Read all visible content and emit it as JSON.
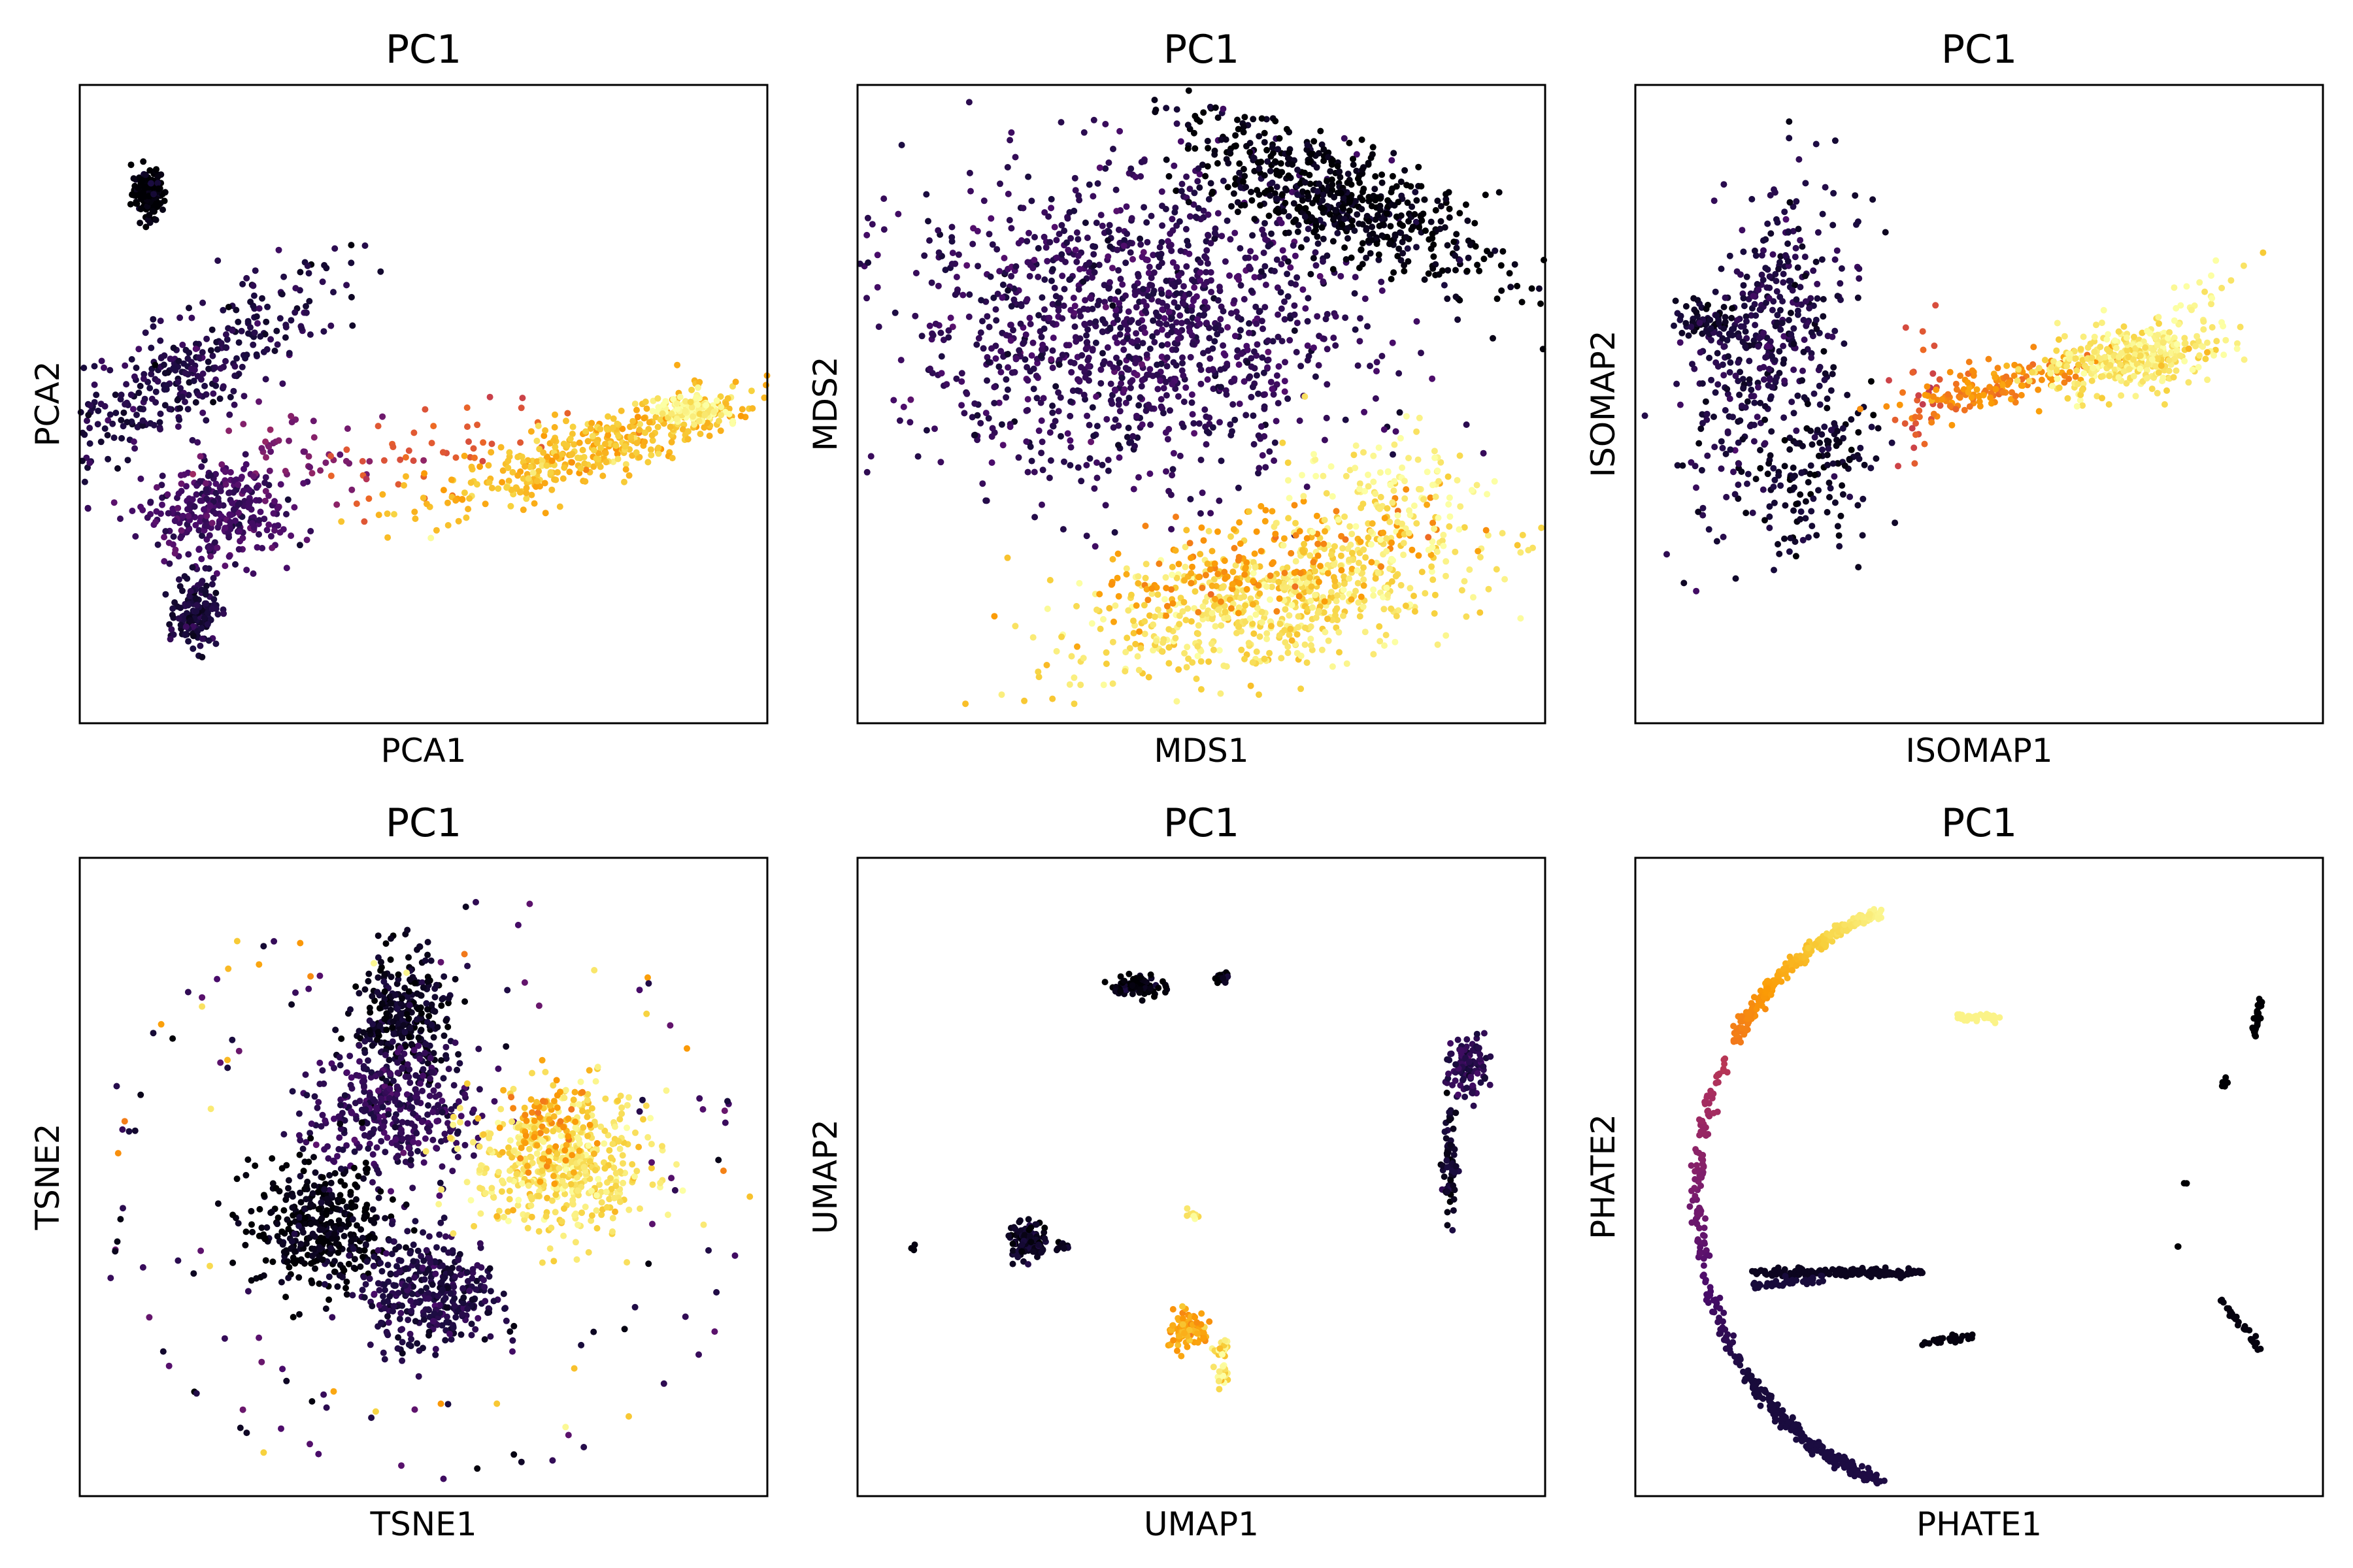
{
  "colormap": [
    "#000004",
    "#1b0c41",
    "#4a0c6b",
    "#781c6d",
    "#a52c60",
    "#cf4446",
    "#ed6925",
    "#fb9b06",
    "#f7d13d",
    "#fcffa4"
  ],
  "chart_data": [
    {
      "type": "scatter",
      "title": "PC1",
      "xlabel": "PCA1",
      "ylabel": "PCA2",
      "xlim": [
        0,
        100
      ],
      "ylim": [
        0,
        100
      ],
      "xticks": false,
      "yticks": false,
      "clusters": [
        {
          "x": 10,
          "y": 83,
          "sx": 1.2,
          "sy": 2.0,
          "n": 140,
          "c": 0.0
        },
        {
          "x": 15,
          "y": 55,
          "sx": 4.0,
          "sy": 14.0,
          "n": 380,
          "c": 0.12,
          "rot": -55
        },
        {
          "x": 20,
          "y": 33,
          "sx": 5.0,
          "sy": 4.0,
          "n": 320,
          "c": 0.2
        },
        {
          "x": 17,
          "y": 17,
          "sx": 1.5,
          "sy": 2.5,
          "n": 160,
          "c": 0.1
        },
        {
          "x": 30,
          "y": 42,
          "sx": 7.0,
          "sy": 3.0,
          "n": 50,
          "c": 0.32
        },
        {
          "x": 53,
          "y": 43,
          "sx": 9.0,
          "sy": 3.0,
          "n": 45,
          "c": 0.62,
          "rot": 18
        },
        {
          "x": 75,
          "y": 43,
          "sx": 13.0,
          "sy": 2.5,
          "n": 400,
          "c": 0.85,
          "rot": 20
        },
        {
          "x": 89,
          "y": 49,
          "sx": 2.5,
          "sy": 1.0,
          "n": 120,
          "c": 0.98
        }
      ]
    },
    {
      "type": "scatter",
      "title": "PC1",
      "xlabel": "MDS1",
      "ylabel": "MDS2",
      "xlim": [
        0,
        100
      ],
      "ylim": [
        0,
        100
      ],
      "xticks": false,
      "yticks": false,
      "clusters": [
        {
          "x": 40,
          "y": 63,
          "sx": 16.0,
          "sy": 12.0,
          "n": 1300,
          "c": 0.16
        },
        {
          "x": 70,
          "y": 82,
          "sx": 13.0,
          "sy": 4.0,
          "n": 600,
          "c": 0.02,
          "rot": -25
        },
        {
          "x": 60,
          "y": 19,
          "sx": 15.0,
          "sy": 5.0,
          "n": 650,
          "c": 0.93,
          "rot": 14
        },
        {
          "x": 60,
          "y": 26,
          "sx": 14.0,
          "sy": 4.0,
          "n": 180,
          "c": 0.78,
          "rot": 14
        },
        {
          "x": 75,
          "y": 36,
          "sx": 8.0,
          "sy": 5.0,
          "n": 120,
          "c": 0.98
        }
      ]
    },
    {
      "type": "scatter",
      "title": "PC1",
      "xlabel": "ISOMAP1",
      "ylabel": "ISOMAP2",
      "xlim": [
        0,
        100
      ],
      "ylim": [
        0,
        100
      ],
      "xticks": false,
      "yticks": false,
      "clusters": [
        {
          "x": 19,
          "y": 60,
          "sx": 5.0,
          "sy": 12.0,
          "n": 420,
          "c": 0.12,
          "rot": -15
        },
        {
          "x": 25,
          "y": 38,
          "sx": 4.0,
          "sy": 8.0,
          "n": 150,
          "c": 0.06,
          "rot": -30
        },
        {
          "x": 10,
          "y": 63,
          "sx": 2.0,
          "sy": 1.5,
          "n": 60,
          "c": 0.08
        },
        {
          "x": 42,
          "y": 52,
          "sx": 2.5,
          "sy": 6.0,
          "n": 30,
          "c": 0.6
        },
        {
          "x": 53,
          "y": 53,
          "sx": 7.0,
          "sy": 1.8,
          "n": 150,
          "c": 0.74,
          "rot": 15
        },
        {
          "x": 72,
          "y": 57,
          "sx": 6.0,
          "sy": 2.5,
          "n": 350,
          "c": 0.95,
          "rot": 10
        },
        {
          "x": 83,
          "y": 67,
          "sx": 5.0,
          "sy": 2.0,
          "n": 20,
          "c": 0.97,
          "rot": 30
        }
      ]
    },
    {
      "type": "scatter",
      "title": "PC1",
      "xlabel": "TSNE1",
      "ylabel": "TSNE2",
      "xlim": [
        0,
        100
      ],
      "ylim": [
        0,
        100
      ],
      "xticks": false,
      "yticks": false,
      "clusters": [
        {
          "x": 47,
          "y": 75,
          "sx": 3.5,
          "sy": 5.0,
          "n": 300,
          "c": 0.05
        },
        {
          "x": 46,
          "y": 60,
          "sx": 6.0,
          "sy": 5.0,
          "n": 380,
          "c": 0.16
        },
        {
          "x": 35,
          "y": 42,
          "sx": 5.0,
          "sy": 5.0,
          "n": 380,
          "c": 0.02
        },
        {
          "x": 51,
          "y": 32,
          "sx": 5.0,
          "sy": 4.5,
          "n": 380,
          "c": 0.12
        },
        {
          "x": 70,
          "y": 52,
          "sx": 6.5,
          "sy": 5.5,
          "n": 500,
          "c": 0.93
        },
        {
          "x": 68,
          "y": 58,
          "sx": 3.0,
          "sy": 4.0,
          "n": 80,
          "c": 0.78
        }
      ],
      "rings": [
        {
          "x": 50,
          "y": 48,
          "r": 46,
          "n": 75
        },
        {
          "x": 50,
          "y": 48,
          "r": 36,
          "n": 50
        }
      ]
    },
    {
      "type": "scatter",
      "title": "PC1",
      "xlabel": "UMAP1",
      "ylabel": "UMAP2",
      "xlim": [
        0,
        100
      ],
      "ylim": [
        0,
        100
      ],
      "xticks": false,
      "yticks": false,
      "clusters": [
        {
          "x": 41,
          "y": 80,
          "sx": 2.0,
          "sy": 0.8,
          "n": 90,
          "c": 0.02
        },
        {
          "x": 53,
          "y": 81,
          "sx": 0.5,
          "sy": 0.5,
          "n": 20,
          "c": 0.02
        },
        {
          "x": 89,
          "y": 67,
          "sx": 1.5,
          "sy": 2.5,
          "n": 110,
          "c": 0.15
        },
        {
          "x": 86,
          "y": 52,
          "sx": 0.5,
          "sy": 4.0,
          "n": 70,
          "c": 0.05
        },
        {
          "x": 25,
          "y": 40,
          "sx": 1.5,
          "sy": 1.5,
          "n": 110,
          "c": 0.06
        },
        {
          "x": 30,
          "y": 39,
          "sx": 0.4,
          "sy": 0.4,
          "n": 10,
          "c": 0.06
        },
        {
          "x": 8,
          "y": 39,
          "sx": 0.3,
          "sy": 0.3,
          "n": 3,
          "c": 0.02
        },
        {
          "x": 49,
          "y": 44,
          "sx": 0.5,
          "sy": 0.5,
          "n": 10,
          "c": 0.95
        },
        {
          "x": 48,
          "y": 26,
          "sx": 1.5,
          "sy": 1.5,
          "n": 90,
          "c": 0.8
        },
        {
          "x": 53,
          "y": 23,
          "sx": 0.6,
          "sy": 0.8,
          "n": 25,
          "c": 0.93
        },
        {
          "x": 53,
          "y": 19,
          "sx": 0.5,
          "sy": 0.8,
          "n": 25,
          "c": 0.96
        }
      ]
    },
    {
      "type": "scatter",
      "title": "PC1",
      "xlabel": "PHATE1",
      "ylabel": "PHATE2",
      "xlim": [
        0,
        100
      ],
      "ylim": [
        0,
        100
      ],
      "xticks": false,
      "yticks": false,
      "arcs": [
        {
          "cx": 45,
          "cy": 47,
          "rx": 36,
          "ry": 46,
          "a0": 105,
          "a1": 148,
          "n": 260,
          "c0": 0.98,
          "c1": 0.7
        },
        {
          "cx": 45,
          "cy": 47,
          "rx": 36,
          "ry": 46,
          "a0": 152,
          "a1": 218,
          "n": 160,
          "c0": 0.5,
          "c1": 0.1
        },
        {
          "cx": 45,
          "cy": 47,
          "rx": 36,
          "ry": 46,
          "a0": 218,
          "a1": 255,
          "n": 220,
          "c0": 0.1,
          "c1": 0.12
        }
      ],
      "lines": [
        {
          "x0": 17,
          "y0": 35,
          "x1": 42,
          "y1": 35,
          "n": 160,
          "c": 0.05
        },
        {
          "x0": 17,
          "y0": 33,
          "x1": 27,
          "y1": 34,
          "n": 40,
          "c": 0.1
        },
        {
          "x0": 42,
          "y0": 24,
          "x1": 49,
          "y1": 25,
          "n": 30,
          "c": 0.02
        },
        {
          "x0": 85,
          "y0": 31,
          "x1": 91,
          "y1": 23,
          "n": 30,
          "c": 0.02
        },
        {
          "x0": 90,
          "y0": 72,
          "x1": 91,
          "y1": 78,
          "n": 30,
          "c": 0.0
        },
        {
          "x0": 85,
          "y0": 64,
          "x1": 86,
          "y1": 65,
          "n": 8,
          "c": 0.0
        },
        {
          "x0": 47,
          "y0": 75,
          "x1": 53,
          "y1": 75,
          "n": 40,
          "c": 0.97
        },
        {
          "x0": 80,
          "y0": 49,
          "x1": 80,
          "y1": 49,
          "n": 2,
          "c": 0.0
        },
        {
          "x0": 79,
          "y0": 39,
          "x1": 79,
          "y1": 39,
          "n": 2,
          "c": 0.0
        }
      ]
    }
  ]
}
